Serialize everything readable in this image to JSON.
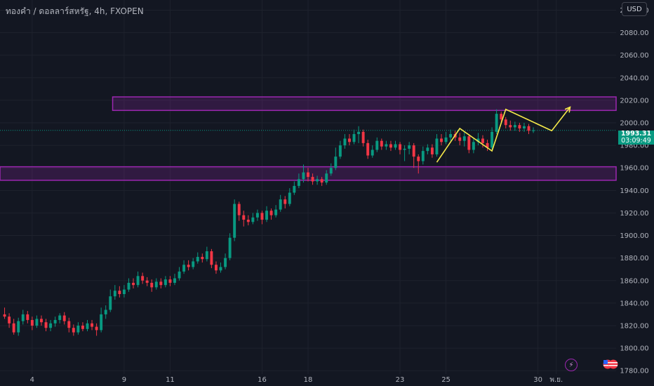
{
  "header": {
    "title": "ทองคำ / ดอลลาร์สหรัฐ, 4h, FXOPEN",
    "currency_button": "USD"
  },
  "price_badge": {
    "price": "1993.31",
    "countdown": "03:09:49"
  },
  "colors": {
    "background": "#131722",
    "grid": "#1e222d",
    "up": "#089981",
    "down": "#f23645",
    "zone_fill": "rgba(156,39,176,0.22)",
    "zone_stroke": "#9c27b0",
    "drawing": "#f5e94a",
    "axis_text": "#b2b5be"
  },
  "icons": {
    "lightning": "lightning-icon",
    "flag": "us-flag-icon"
  },
  "chart_data": {
    "type": "candlestick",
    "title": "ทองคำ / ดอลลาร์สหรัฐ, 4h, FXOPEN",
    "y_ticks": [
      "2100.00",
      "2080.00",
      "2060.00",
      "2040.00",
      "2020.00",
      "2000.00",
      "1980.00",
      "1960.00",
      "1940.00",
      "1920.00",
      "1900.00",
      "1880.00",
      "1860.00",
      "1840.00",
      "1820.00",
      "1800.00",
      "1780.00"
    ],
    "x_ticks": [
      {
        "label": "4",
        "x": 0
      },
      {
        "label": "9",
        "x": 20
      },
      {
        "label": "11",
        "x": 30
      },
      {
        "label": "16",
        "x": 50
      },
      {
        "label": "18",
        "x": 60
      },
      {
        "label": "23",
        "x": 80
      },
      {
        "label": "25",
        "x": 90
      },
      {
        "label": "30",
        "x": 110
      },
      {
        "label": "พ.ย.",
        "x": 114
      }
    ],
    "ylim": [
      1777,
      2109
    ],
    "xlim": [
      -7,
      127
    ],
    "current_price": 1993.31,
    "candles": [
      [
        -6,
        1830,
        1828,
        1836,
        1826
      ],
      [
        -5,
        1828,
        1822,
        1831,
        1818
      ],
      [
        -4,
        1822,
        1814,
        1826,
        1812
      ],
      [
        -3,
        1814,
        1824,
        1827,
        1811
      ],
      [
        -2,
        1824,
        1830,
        1834,
        1821
      ],
      [
        -1,
        1830,
        1825,
        1833,
        1822
      ],
      [
        0,
        1825,
        1820,
        1828,
        1816
      ],
      [
        1,
        1820,
        1826,
        1829,
        1818
      ],
      [
        2,
        1826,
        1823,
        1829,
        1820
      ],
      [
        3,
        1823,
        1818,
        1826,
        1815
      ],
      [
        4,
        1818,
        1822,
        1825,
        1815
      ],
      [
        5,
        1822,
        1825,
        1828,
        1819
      ],
      [
        6,
        1825,
        1829,
        1831,
        1822
      ],
      [
        7,
        1829,
        1824,
        1832,
        1821
      ],
      [
        8,
        1824,
        1818,
        1827,
        1814
      ],
      [
        9,
        1818,
        1814,
        1821,
        1811
      ],
      [
        10,
        1814,
        1820,
        1823,
        1812
      ],
      [
        11,
        1820,
        1817,
        1823,
        1815
      ],
      [
        12,
        1817,
        1822,
        1825,
        1815
      ],
      [
        13,
        1822,
        1819,
        1825,
        1816
      ],
      [
        14,
        1819,
        1816,
        1822,
        1811
      ],
      [
        15,
        1816,
        1830,
        1836,
        1814
      ],
      [
        16,
        1830,
        1834,
        1838,
        1826
      ],
      [
        17,
        1834,
        1846,
        1852,
        1832
      ],
      [
        18,
        1846,
        1851,
        1856,
        1843
      ],
      [
        19,
        1851,
        1848,
        1855,
        1845
      ],
      [
        20,
        1848,
        1852,
        1856,
        1845
      ],
      [
        21,
        1852,
        1858,
        1862,
        1850
      ],
      [
        22,
        1858,
        1856,
        1862,
        1853
      ],
      [
        23,
        1856,
        1864,
        1868,
        1854
      ],
      [
        24,
        1864,
        1860,
        1867,
        1857
      ],
      [
        25,
        1860,
        1858,
        1863,
        1855
      ],
      [
        26,
        1858,
        1854,
        1861,
        1850
      ],
      [
        27,
        1854,
        1859,
        1862,
        1852
      ],
      [
        28,
        1859,
        1856,
        1862,
        1853
      ],
      [
        29,
        1856,
        1861,
        1864,
        1854
      ],
      [
        30,
        1861,
        1858,
        1864,
        1855
      ],
      [
        31,
        1858,
        1862,
        1866,
        1856
      ],
      [
        32,
        1862,
        1868,
        1872,
        1860
      ],
      [
        33,
        1868,
        1874,
        1878,
        1866
      ],
      [
        34,
        1874,
        1872,
        1878,
        1869
      ],
      [
        35,
        1872,
        1877,
        1880,
        1870
      ],
      [
        36,
        1877,
        1881,
        1885,
        1875
      ],
      [
        37,
        1881,
        1879,
        1884,
        1876
      ],
      [
        38,
        1879,
        1886,
        1890,
        1877
      ],
      [
        39,
        1886,
        1874,
        1888,
        1871
      ],
      [
        40,
        1874,
        1869,
        1877,
        1866
      ],
      [
        41,
        1869,
        1872,
        1876,
        1867
      ],
      [
        42,
        1872,
        1880,
        1884,
        1870
      ],
      [
        43,
        1880,
        1898,
        1902,
        1878
      ],
      [
        44,
        1898,
        1928,
        1932,
        1895
      ],
      [
        45,
        1928,
        1918,
        1930,
        1913
      ],
      [
        46,
        1918,
        1914,
        1922,
        1908
      ],
      [
        47,
        1914,
        1912,
        1918,
        1909
      ],
      [
        48,
        1912,
        1916,
        1920,
        1910
      ],
      [
        49,
        1916,
        1920,
        1923,
        1913
      ],
      [
        50,
        1920,
        1914,
        1922,
        1910
      ],
      [
        51,
        1914,
        1922,
        1926,
        1912
      ],
      [
        52,
        1922,
        1918,
        1924,
        1914
      ],
      [
        53,
        1918,
        1923,
        1927,
        1916
      ],
      [
        54,
        1923,
        1932,
        1936,
        1921
      ],
      [
        55,
        1932,
        1928,
        1935,
        1924
      ],
      [
        56,
        1928,
        1938,
        1942,
        1926
      ],
      [
        57,
        1938,
        1944,
        1948,
        1936
      ],
      [
        58,
        1944,
        1950,
        1955,
        1942
      ],
      [
        59,
        1950,
        1956,
        1963,
        1947
      ],
      [
        60,
        1956,
        1952,
        1960,
        1948
      ],
      [
        61,
        1952,
        1948,
        1955,
        1945
      ],
      [
        62,
        1948,
        1950,
        1953,
        1945
      ],
      [
        63,
        1950,
        1947,
        1952,
        1944
      ],
      [
        64,
        1947,
        1955,
        1958,
        1945
      ],
      [
        65,
        1955,
        1960,
        1964,
        1953
      ],
      [
        66,
        1960,
        1970,
        1978,
        1958
      ],
      [
        67,
        1970,
        1980,
        1984,
        1968
      ],
      [
        68,
        1980,
        1986,
        1990,
        1977
      ],
      [
        69,
        1986,
        1983,
        1990,
        1980
      ],
      [
        70,
        1983,
        1990,
        1994,
        1981
      ],
      [
        71,
        1990,
        1992,
        1997,
        1982
      ],
      [
        72,
        1992,
        1982,
        1994,
        1979
      ],
      [
        73,
        1982,
        1971,
        1985,
        1968
      ],
      [
        74,
        1971,
        1976,
        1980,
        1969
      ],
      [
        75,
        1976,
        1984,
        1987,
        1974
      ],
      [
        76,
        1984,
        1979,
        1986,
        1976
      ],
      [
        77,
        1979,
        1981,
        1984,
        1976
      ],
      [
        78,
        1981,
        1978,
        1984,
        1975
      ],
      [
        79,
        1978,
        1981,
        1984,
        1976
      ],
      [
        80,
        1981,
        1976,
        1983,
        1972
      ],
      [
        81,
        1976,
        1977,
        1980,
        1966
      ],
      [
        82,
        1977,
        1980,
        1983,
        1972
      ],
      [
        83,
        1980,
        1970,
        1982,
        1960
      ],
      [
        84,
        1970,
        1966,
        1972,
        1955
      ],
      [
        85,
        1966,
        1975,
        1979,
        1963
      ],
      [
        86,
        1975,
        1978,
        1981,
        1972
      ],
      [
        87,
        1978,
        1972,
        1981,
        1969
      ],
      [
        88,
        1972,
        1986,
        1990,
        1970
      ],
      [
        89,
        1986,
        1983,
        1990,
        1980
      ],
      [
        90,
        1983,
        1987,
        1992,
        1981
      ],
      [
        91,
        1987,
        1990,
        1994,
        1984
      ],
      [
        92,
        1990,
        1987,
        1993,
        1984
      ],
      [
        93,
        1987,
        1984,
        1991,
        1980
      ],
      [
        94,
        1984,
        1988,
        1992,
        1979
      ],
      [
        95,
        1988,
        1976,
        1990,
        1973
      ],
      [
        96,
        1976,
        1983,
        1986,
        1973
      ],
      [
        97,
        1983,
        1986,
        1991,
        1980
      ],
      [
        98,
        1986,
        1982,
        1989,
        1978
      ],
      [
        99,
        1982,
        1978,
        1985,
        1975
      ],
      [
        100,
        1978,
        1992,
        1996,
        1976
      ],
      [
        101,
        1992,
        2008,
        2012,
        1990
      ],
      [
        102,
        2008,
        2003,
        2010,
        2000
      ],
      [
        103,
        2003,
        1998,
        2005,
        1995
      ],
      [
        104,
        1998,
        1996,
        2002,
        1993
      ],
      [
        105,
        1996,
        1998,
        2001,
        1993
      ],
      [
        106,
        1998,
        1995,
        2000,
        1992
      ],
      [
        107,
        1995,
        1997,
        2000,
        1992
      ],
      [
        108,
        1997,
        1993,
        1999,
        1990
      ],
      [
        109,
        1993,
        1993.31,
        1996,
        1991
      ]
    ],
    "zones": [
      {
        "x_start": 17.5,
        "x_end": 127,
        "y_top": 2023,
        "y_bottom": 2011
      },
      {
        "x_start": -7,
        "x_end": 127,
        "y_top": 1961,
        "y_bottom": 1949
      }
    ],
    "drawing_path": [
      [
        88,
        1965
      ],
      [
        93,
        1995
      ],
      [
        100,
        1975
      ],
      [
        103,
        2012
      ],
      [
        113,
        1993
      ],
      [
        117,
        2014
      ]
    ]
  }
}
